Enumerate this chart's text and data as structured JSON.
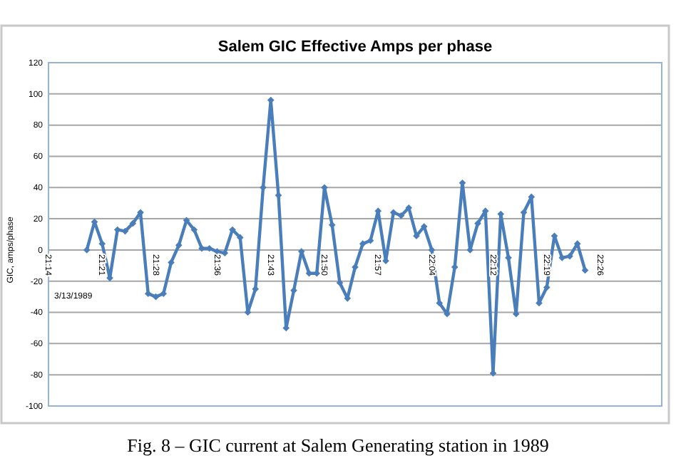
{
  "chart_data": {
    "type": "line",
    "title": "Salem GIC Effective Amps per phase",
    "ylabel": "GIC, amps/phase",
    "annotations": [
      "3/13/1989",
      "Fig. 8 – GIC current at Salem Generating station in 1989"
    ],
    "x": [
      "1989-03-13T21:19",
      "1989-03-13T21:20",
      "1989-03-13T21:21",
      "1989-03-13T21:22",
      "1989-03-13T21:23",
      "1989-03-13T21:24",
      "1989-03-13T21:25",
      "1989-03-13T21:26",
      "1989-03-13T21:27",
      "1989-03-13T21:28",
      "1989-03-13T21:29",
      "1989-03-13T21:30",
      "1989-03-13T21:31",
      "1989-03-13T21:32",
      "1989-03-13T21:33",
      "1989-03-13T21:34",
      "1989-03-13T21:35",
      "1989-03-13T21:36",
      "1989-03-13T21:37",
      "1989-03-13T21:38",
      "1989-03-13T21:39",
      "1989-03-13T21:40",
      "1989-03-13T21:41",
      "1989-03-13T21:42",
      "1989-03-13T21:43",
      "1989-03-13T21:44",
      "1989-03-13T21:45",
      "1989-03-13T21:46",
      "1989-03-13T21:47",
      "1989-03-13T21:48",
      "1989-03-13T21:49",
      "1989-03-13T21:50",
      "1989-03-13T21:51",
      "1989-03-13T21:52",
      "1989-03-13T21:53",
      "1989-03-13T21:54",
      "1989-03-13T21:55",
      "1989-03-13T21:56",
      "1989-03-13T21:57",
      "1989-03-13T21:58",
      "1989-03-13T21:59",
      "1989-03-13T22:00",
      "1989-03-13T22:01",
      "1989-03-13T22:02",
      "1989-03-13T22:03",
      "1989-03-13T22:04",
      "1989-03-13T22:05",
      "1989-03-13T22:06",
      "1989-03-13T22:07",
      "1989-03-13T22:08",
      "1989-03-13T22:09",
      "1989-03-13T22:10",
      "1989-03-13T22:11",
      "1989-03-13T22:12",
      "1989-03-13T22:13",
      "1989-03-13T22:14",
      "1989-03-13T22:15",
      "1989-03-13T22:16",
      "1989-03-13T22:17",
      "1989-03-13T22:18",
      "1989-03-13T22:19",
      "1989-03-13T22:20",
      "1989-03-13T22:21",
      "1989-03-13T22:22",
      "1989-03-13T22:23",
      "1989-03-13T22:24"
    ],
    "series": [
      {
        "color": "#4a7ebb",
        "values": [
          0,
          18,
          4,
          -18,
          13,
          12,
          17,
          24,
          -28,
          -30,
          -28,
          -8,
          3,
          19,
          13,
          1,
          1,
          -1,
          -2,
          13,
          8,
          -40,
          -25,
          40,
          96,
          35,
          -50,
          -26,
          -1,
          -15,
          -15,
          40,
          16,
          -21,
          -31,
          -11,
          4,
          6,
          25,
          -7,
          24,
          22,
          27,
          9,
          15,
          0,
          -34,
          -41,
          -11,
          43,
          0,
          17,
          25,
          -79,
          23,
          -5,
          -41,
          24,
          34,
          -34,
          -24,
          9,
          -5,
          -4,
          4,
          -13
        ]
      }
    ],
    "xlim": [
      "1989-03-13T21:14",
      "1989-03-13T22:34"
    ],
    "xticks": [
      {
        "value": "1989-03-13T21:14",
        "label": "21:14"
      },
      {
        "value": "1989-03-13T21:21",
        "label": "21:21"
      },
      {
        "value": "1989-03-13T21:28",
        "label": "21:28"
      },
      {
        "value": "1989-03-13T21:36",
        "label": "21:36"
      },
      {
        "value": "1989-03-13T21:43",
        "label": "21:43"
      },
      {
        "value": "1989-03-13T21:50",
        "label": "21:50"
      },
      {
        "value": "1989-03-13T21:57",
        "label": "21:57"
      },
      {
        "value": "1989-03-13T22:04",
        "label": "22:04"
      },
      {
        "value": "1989-03-13T22:12",
        "label": "22:12"
      },
      {
        "value": "1989-03-13T22:19",
        "label": "22:19"
      },
      {
        "value": "1989-03-13T22:26",
        "label": "22:26"
      }
    ],
    "ylim": [
      -100,
      120
    ],
    "yticks": [
      -100,
      -80,
      -60,
      -40,
      -20,
      0,
      20,
      40,
      60,
      80,
      100,
      120
    ],
    "grid": "y",
    "marker": "diamond",
    "line_style": "solid"
  }
}
